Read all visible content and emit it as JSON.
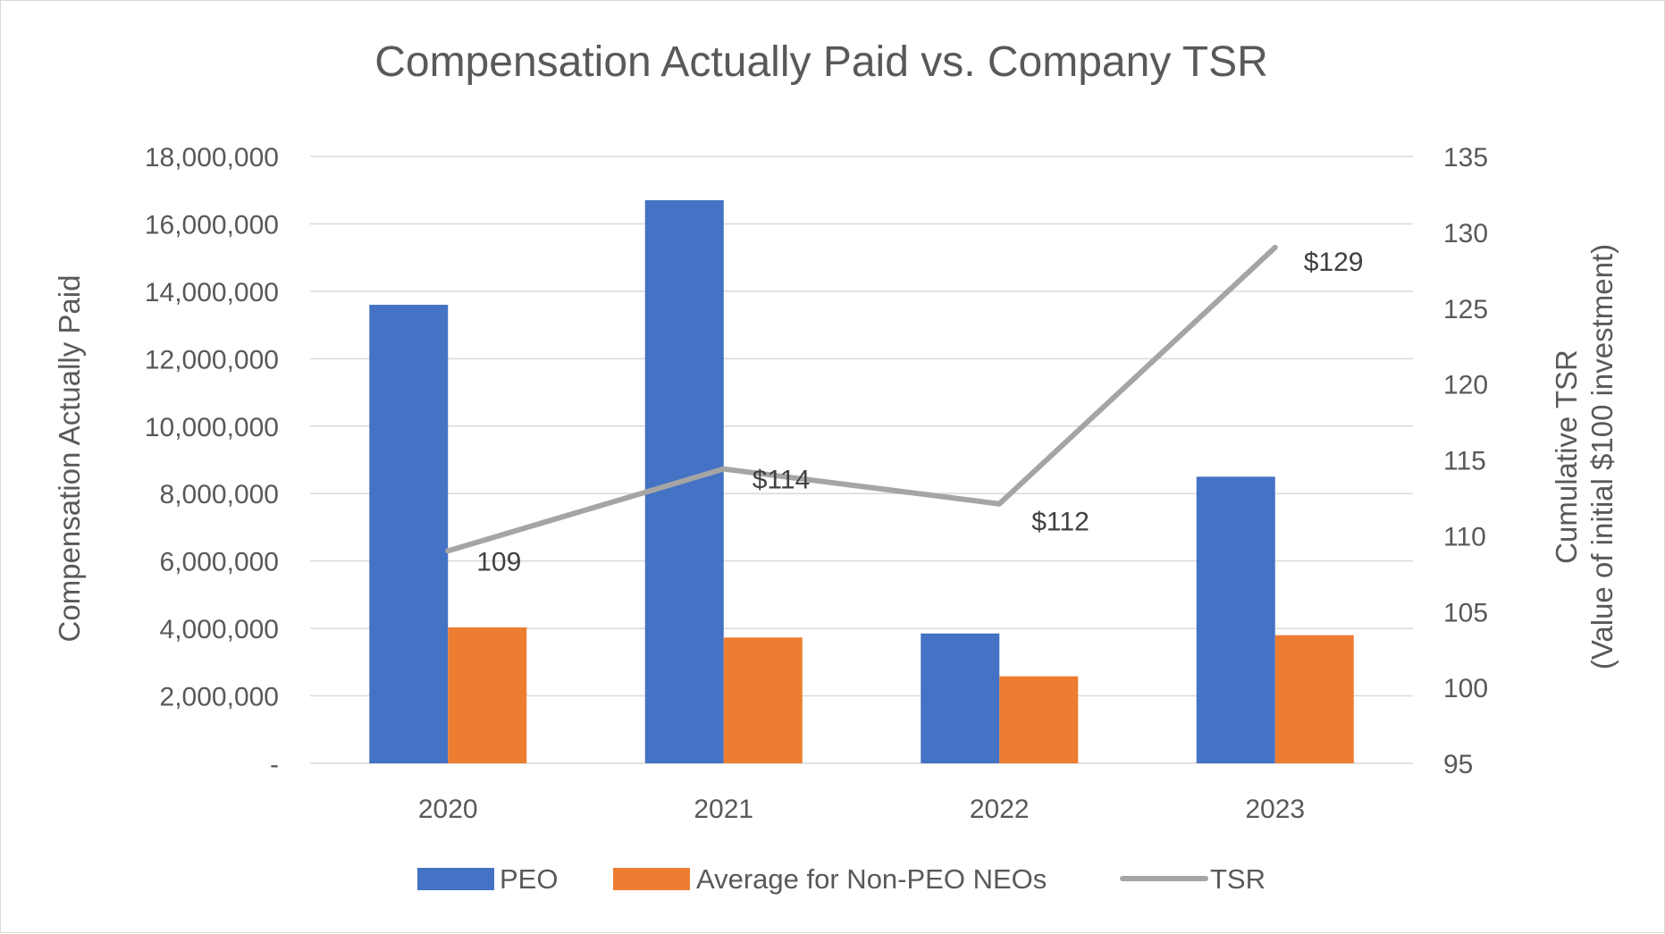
{
  "chart_data": {
    "type": "bar",
    "title": "Compensation Actually Paid vs. Company TSR",
    "categories": [
      "2020",
      "2021",
      "2022",
      "2023"
    ],
    "series": [
      {
        "name": "PEO",
        "type": "bar",
        "axis": "left",
        "color": "#4472C4",
        "values": [
          13600000,
          16700000,
          3850000,
          8500000
        ]
      },
      {
        "name": "Average for Non-PEO NEOs",
        "type": "bar",
        "axis": "left",
        "color": "#ED7D31",
        "values": [
          4030000,
          3730000,
          2580000,
          3800000
        ]
      },
      {
        "name": "TSR",
        "type": "line",
        "axis": "right",
        "color": "#A5A5A5",
        "values": [
          109,
          114.4,
          112.1,
          129
        ],
        "data_labels": [
          "109",
          "$114",
          "$112",
          "$129"
        ]
      }
    ],
    "left_axis": {
      "title": "Compensation Actually Paid",
      "min": 0,
      "max": 18000000,
      "tick_labels": [
        "-",
        "2,000,000",
        "4,000,000",
        "6,000,000",
        "8,000,000",
        "10,000,000",
        "12,000,000",
        "14,000,000",
        "16,000,000",
        "18,000,000"
      ]
    },
    "right_axis": {
      "title_line1": "Cumulative TSR",
      "title_line2": "(Value of initial $100 investment)",
      "min": 95,
      "max": 135,
      "tick_labels": [
        "95",
        "100",
        "105",
        "110",
        "115",
        "120",
        "125",
        "130",
        "135"
      ]
    },
    "grid": true,
    "legend_position": "bottom"
  }
}
